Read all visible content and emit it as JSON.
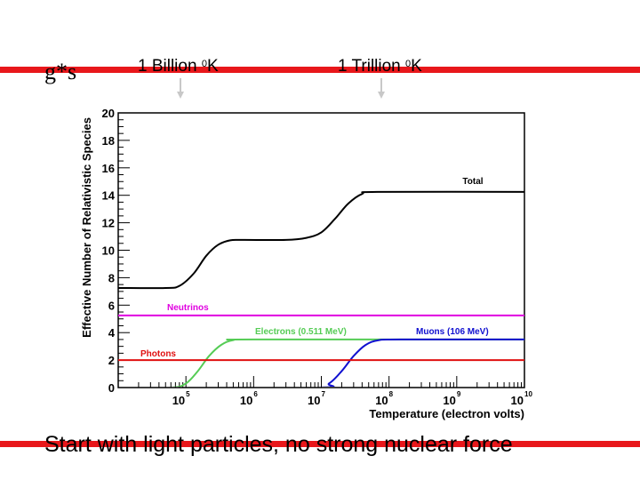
{
  "slide": {
    "label": "g*s",
    "caption": "Start with light particles, no strong nuclear force",
    "temp_labels": [
      {
        "text": "1 Billion ",
        "unit": "0",
        "suffix": "K"
      },
      {
        "text": "1 Trillion ",
        "unit": "0",
        "suffix": "K"
      }
    ]
  },
  "chart_data": {
    "type": "line",
    "title": "",
    "xlabel": "Temperature (electron volts)",
    "ylabel": "Effective Number of Relativistic Species",
    "xscale": "log",
    "xlim": [
      10000,
      10000000000
    ],
    "ylim": [
      0,
      20
    ],
    "yticks": [
      0,
      2,
      4,
      6,
      8,
      10,
      12,
      14,
      16,
      18,
      20
    ],
    "xticks": [
      {
        "value": 100000,
        "base": "10",
        "exp": "5"
      },
      {
        "value": 1000000,
        "base": "10",
        "exp": "6"
      },
      {
        "value": 10000000,
        "base": "10",
        "exp": "7"
      },
      {
        "value": 100000000,
        "base": "10",
        "exp": "8"
      },
      {
        "value": 1000000000,
        "base": "10",
        "exp": "9"
      },
      {
        "value": 10000000000,
        "base": "10",
        "exp": "10"
      }
    ],
    "grid": false,
    "series": [
      {
        "name": "Total",
        "color": "#000000",
        "points": [
          [
            10000,
            7.25
          ],
          [
            50000,
            7.25
          ],
          [
            80000,
            7.4
          ],
          [
            130000,
            8.3
          ],
          [
            200000,
            9.6
          ],
          [
            300000,
            10.4
          ],
          [
            450000,
            10.72
          ],
          [
            700000,
            10.75
          ],
          [
            3000000,
            10.75
          ],
          [
            6000000,
            10.9
          ],
          [
            10000000,
            11.3
          ],
          [
            16000000,
            12.3
          ],
          [
            25000000,
            13.4
          ],
          [
            40000000,
            14.1
          ],
          [
            70000000,
            14.25
          ],
          [
            10000000000,
            14.25
          ]
        ]
      },
      {
        "name": "Neutrinos",
        "color": "#e000e0",
        "points": [
          [
            10000,
            5.25
          ],
          [
            10000000000,
            5.25
          ]
        ]
      },
      {
        "name": "Electrons (0.511 MeV)",
        "color": "#55cc55",
        "points": [
          [
            10000,
            0
          ],
          [
            60000,
            0
          ],
          [
            100000,
            0.3
          ],
          [
            150000,
            1.2
          ],
          [
            220000,
            2.3
          ],
          [
            330000,
            3.1
          ],
          [
            500000,
            3.45
          ],
          [
            1000000,
            3.5
          ],
          [
            10000000000,
            3.5
          ]
        ]
      },
      {
        "name": "Muons (106 MeV)",
        "color": "#1010d0",
        "points": [
          [
            10000,
            0
          ],
          [
            8000000,
            0
          ],
          [
            13000000,
            0.3
          ],
          [
            20000000,
            1.2
          ],
          [
            30000000,
            2.3
          ],
          [
            45000000,
            3.1
          ],
          [
            70000000,
            3.45
          ],
          [
            150000000,
            3.5
          ],
          [
            10000000000,
            3.5
          ]
        ]
      },
      {
        "name": "Photons",
        "color": "#e01010",
        "points": [
          [
            10000,
            2
          ],
          [
            10000000000,
            2
          ]
        ]
      }
    ]
  }
}
